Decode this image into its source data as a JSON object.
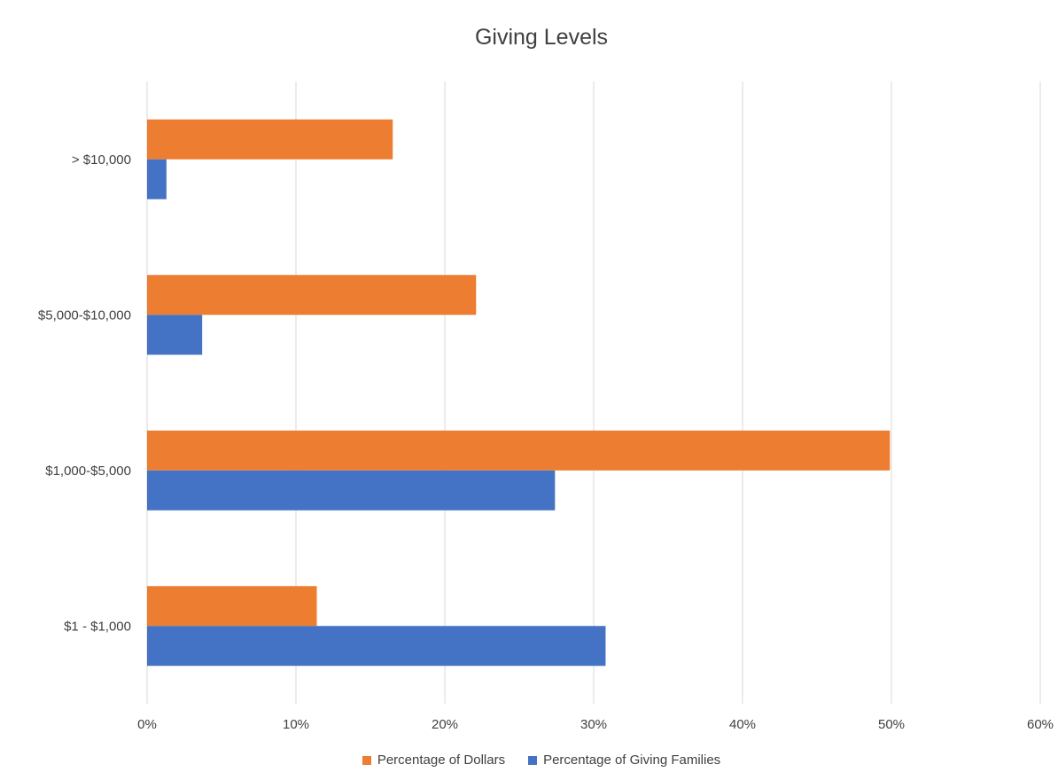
{
  "chart_data": {
    "type": "bar",
    "orientation": "horizontal",
    "title": "Giving Levels",
    "categories": [
      "> $10,000",
      "$5,000-$10,000",
      "$1,000-$5,000",
      "$1 - $1,000"
    ],
    "series": [
      {
        "name": "Percentage of Dollars",
        "color": "#ED7D31",
        "values": [
          16.5,
          22.1,
          49.9,
          11.4
        ]
      },
      {
        "name": "Percentage of Giving Families",
        "color": "#4472C4",
        "values": [
          1.3,
          3.7,
          27.4,
          30.8
        ]
      }
    ],
    "x_ticks": [
      "0%",
      "10%",
      "20%",
      "30%",
      "40%",
      "50%",
      "60%"
    ],
    "xlim": [
      0,
      60
    ],
    "grid": true,
    "legend_position": "bottom"
  }
}
